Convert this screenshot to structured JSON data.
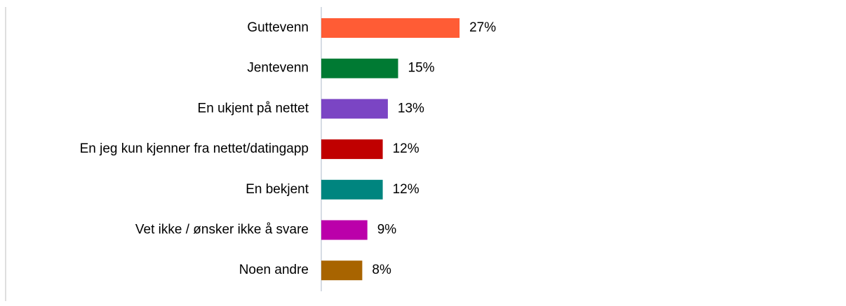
{
  "chart_data": {
    "type": "bar",
    "orientation": "horizontal",
    "categories": [
      "Guttevenn",
      "Jentevenn",
      "En ukjent på nettet",
      "En jeg kun kjenner fra nettet/datingapp",
      "En bekjent",
      "Vet ikke / ønsker ikke å svare",
      "Noen andre"
    ],
    "values": [
      27,
      15,
      13,
      12,
      12,
      9,
      8
    ],
    "value_labels": [
      "27%",
      "15%",
      "13%",
      "12%",
      "12%",
      "9%",
      "8%"
    ],
    "colors": [
      "#ff5c35",
      "#007a33",
      "#7b45c4",
      "#c00000",
      "#00857f",
      "#bb00aa",
      "#a86400"
    ]
  }
}
